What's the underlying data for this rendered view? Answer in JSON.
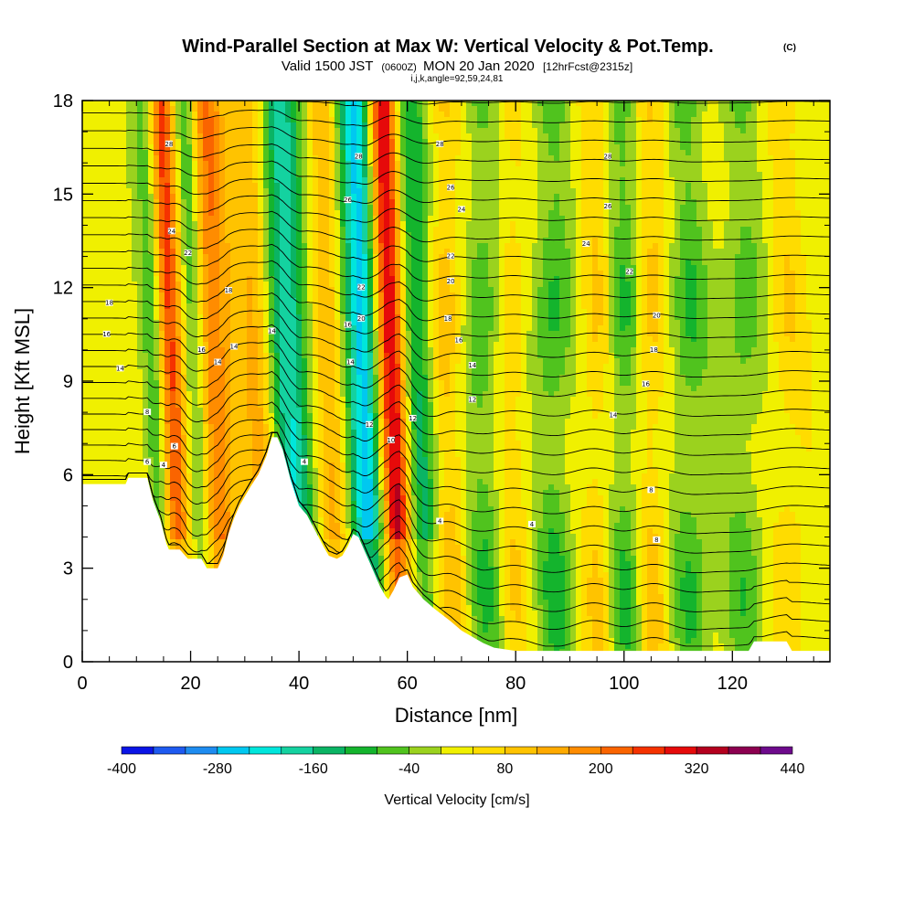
{
  "header": {
    "title": "Wind-Parallel Section at Max W: Vertical Velocity & Pot.Temp.",
    "title_mark": "(C)",
    "subtitle_a": "Valid 1500 JST",
    "subtitle_b": "(0600Z)",
    "subtitle_c": "MON 20 Jan 2020",
    "subtitle_d": "[12hrFcst@2315z]",
    "section_info": "i,j,k,angle=92,59,24,81"
  },
  "chart_data": {
    "type": "heatmap",
    "title": "Wind-Parallel Section at Max W: Vertical Velocity & Pot.Temp.",
    "xlabel": "Distance [nm]",
    "ylabel": "Height [Kft MSL]",
    "xlim": [
      0,
      138
    ],
    "ylim": [
      0,
      18
    ],
    "x_ticks": [
      0,
      20,
      40,
      60,
      80,
      100,
      120
    ],
    "y_ticks": [
      0,
      3,
      6,
      9,
      12,
      15,
      18
    ],
    "colorbar": {
      "title": "Vertical Velocity [cm/s]",
      "tick_values": [
        -400,
        -280,
        -160,
        -40,
        80,
        200,
        320,
        440
      ],
      "tick_labels": [
        "-400",
        "-280",
        "-160",
        "-40",
        "80",
        "200",
        "320",
        "440"
      ],
      "levels": [
        -400,
        -360,
        -320,
        -280,
        -240,
        -200,
        -160,
        -120,
        -80,
        -40,
        0,
        40,
        80,
        120,
        160,
        200,
        240,
        280,
        320,
        360,
        400,
        440
      ],
      "colors": [
        "#0a14e6",
        "#1e5af0",
        "#1e8cf0",
        "#00c8f0",
        "#00e6dc",
        "#14d2a0",
        "#0ab464",
        "#14b42d",
        "#50c31e",
        "#9bd21e",
        "#f0f000",
        "#ffdc00",
        "#ffc300",
        "#ffaa00",
        "#ff8c00",
        "#fa6400",
        "#f53200",
        "#e60a0a",
        "#b4001e",
        "#8c0050",
        "#6e0a8c"
      ]
    },
    "vertical_velocity_bands": [
      {
        "x": 16,
        "w": 280,
        "width": 1.8
      },
      {
        "x": 14,
        "w": -170,
        "width": 1.6
      },
      {
        "x": 21,
        "w": -170,
        "width": 1.6
      },
      {
        "x": 24,
        "w": 200,
        "width": 2.6
      },
      {
        "x": 33,
        "w": 140,
        "width": 2.5
      },
      {
        "x": 38,
        "w": -230,
        "width": 3.0
      },
      {
        "x": 46,
        "w": 120,
        "width": 2.5
      },
      {
        "x": 52,
        "w": -300,
        "width": 2.6
      },
      {
        "x": 57,
        "w": 360,
        "width": 2.0
      },
      {
        "x": 62,
        "w": -160,
        "width": 2.2
      },
      {
        "x": 67,
        "w": 110,
        "width": 2.2
      },
      {
        "x": 74,
        "w": -110,
        "width": 2.5
      },
      {
        "x": 79,
        "w": 70,
        "width": 2.0
      },
      {
        "x": 87,
        "w": -120,
        "width": 2.5
      },
      {
        "x": 95,
        "w": 80,
        "width": 2.0
      },
      {
        "x": 100,
        "w": -120,
        "width": 2.2
      },
      {
        "x": 105,
        "w": 90,
        "width": 2.0
      },
      {
        "x": 112,
        "w": -110,
        "width": 2.5
      },
      {
        "x": 122,
        "w": -90,
        "width": 3.0
      },
      {
        "x": 130,
        "w": 60,
        "width": 2.5
      }
    ],
    "terrain_kft": [
      [
        0,
        5.7
      ],
      [
        5,
        5.7
      ],
      [
        8,
        5.7
      ],
      [
        8.5,
        5.9
      ],
      [
        12,
        5.9
      ],
      [
        13,
        5.2
      ],
      [
        14.5,
        4.5
      ],
      [
        15.5,
        3.8
      ],
      [
        16,
        3.6
      ],
      [
        18,
        3.6
      ],
      [
        19.5,
        3.3
      ],
      [
        22,
        3.3
      ],
      [
        23,
        3.0
      ],
      [
        25,
        3.0
      ],
      [
        26,
        3.4
      ],
      [
        27,
        4.1
      ],
      [
        28,
        4.6
      ],
      [
        29,
        5.0
      ],
      [
        30,
        5.3
      ],
      [
        31,
        5.6
      ],
      [
        32.5,
        6.0
      ],
      [
        34,
        6.6
      ],
      [
        35,
        7.2
      ],
      [
        36,
        7.2
      ],
      [
        37,
        6.8
      ],
      [
        38.5,
        5.8
      ],
      [
        40,
        5.0
      ],
      [
        41.5,
        4.7
      ],
      [
        43,
        4.2
      ],
      [
        44.5,
        3.7
      ],
      [
        45.5,
        3.4
      ],
      [
        47,
        3.3
      ],
      [
        48,
        3.4
      ],
      [
        49,
        3.7
      ],
      [
        50,
        4.1
      ],
      [
        51,
        4.0
      ],
      [
        52,
        3.6
      ],
      [
        53,
        3.2
      ],
      [
        54,
        2.8
      ],
      [
        55,
        2.4
      ],
      [
        56,
        2.1
      ],
      [
        56.5,
        2.0
      ],
      [
        57.5,
        2.3
      ],
      [
        58.5,
        2.7
      ],
      [
        60,
        2.8
      ],
      [
        61,
        2.4
      ],
      [
        63,
        2.0
      ],
      [
        65,
        1.7
      ],
      [
        68,
        1.3
      ],
      [
        70,
        1.0
      ],
      [
        72,
        0.8
      ],
      [
        74,
        0.6
      ],
      [
        76,
        0.45
      ],
      [
        80,
        0.35
      ],
      [
        90,
        0.35
      ],
      [
        100,
        0.35
      ],
      [
        110,
        0.35
      ],
      [
        123,
        0.35
      ],
      [
        124,
        0.65
      ],
      [
        130,
        0.65
      ],
      [
        131,
        0.35
      ],
      [
        138,
        0.35
      ]
    ],
    "theta_contour_labels": [
      {
        "x": 12,
        "y": 8.0,
        "text": "8"
      },
      {
        "x": 12,
        "y": 6.4,
        "text": "6"
      },
      {
        "x": 15,
        "y": 6.3,
        "text": "4"
      },
      {
        "x": 17,
        "y": 6.9,
        "text": "6"
      },
      {
        "x": 16,
        "y": 16.6,
        "text": "28"
      },
      {
        "x": 16.5,
        "y": 13.8,
        "text": "24"
      },
      {
        "x": 19.5,
        "y": 13.1,
        "text": "22"
      },
      {
        "x": 22,
        "y": 10.0,
        "text": "16"
      },
      {
        "x": 25,
        "y": 9.6,
        "text": "14"
      },
      {
        "x": 28,
        "y": 10.1,
        "text": "14"
      },
      {
        "x": 27,
        "y": 11.9,
        "text": "18"
      },
      {
        "x": 35,
        "y": 10.6,
        "text": "14"
      },
      {
        "x": 41,
        "y": 6.4,
        "text": "4"
      },
      {
        "x": 5,
        "y": 11.5,
        "text": "18"
      },
      {
        "x": 4.5,
        "y": 10.5,
        "text": "16"
      },
      {
        "x": 7,
        "y": 9.4,
        "text": "14"
      },
      {
        "x": 51,
        "y": 16.2,
        "text": "28"
      },
      {
        "x": 49,
        "y": 14.8,
        "text": "26"
      },
      {
        "x": 51.5,
        "y": 12.0,
        "text": "22"
      },
      {
        "x": 51.5,
        "y": 11.0,
        "text": "20"
      },
      {
        "x": 49,
        "y": 10.8,
        "text": "16"
      },
      {
        "x": 49.5,
        "y": 9.6,
        "text": "14"
      },
      {
        "x": 53,
        "y": 7.6,
        "text": "12"
      },
      {
        "x": 57,
        "y": 7.1,
        "text": "10"
      },
      {
        "x": 61,
        "y": 7.8,
        "text": "12"
      },
      {
        "x": 66,
        "y": 16.6,
        "text": "28"
      },
      {
        "x": 68,
        "y": 15.2,
        "text": "26"
      },
      {
        "x": 70,
        "y": 14.5,
        "text": "24"
      },
      {
        "x": 68,
        "y": 13.0,
        "text": "22"
      },
      {
        "x": 68,
        "y": 12.2,
        "text": "20"
      },
      {
        "x": 67.5,
        "y": 11.0,
        "text": "18"
      },
      {
        "x": 69.5,
        "y": 10.3,
        "text": "16"
      },
      {
        "x": 72,
        "y": 9.5,
        "text": "14"
      },
      {
        "x": 72,
        "y": 8.4,
        "text": "12"
      },
      {
        "x": 66,
        "y": 4.5,
        "text": "4"
      },
      {
        "x": 83,
        "y": 4.4,
        "text": "4"
      },
      {
        "x": 97,
        "y": 16.2,
        "text": "28"
      },
      {
        "x": 97,
        "y": 14.6,
        "text": "26"
      },
      {
        "x": 93,
        "y": 13.4,
        "text": "24"
      },
      {
        "x": 101,
        "y": 12.5,
        "text": "22"
      },
      {
        "x": 106,
        "y": 11.1,
        "text": "20"
      },
      {
        "x": 105.5,
        "y": 10.0,
        "text": "18"
      },
      {
        "x": 104,
        "y": 8.9,
        "text": "16"
      },
      {
        "x": 98,
        "y": 7.9,
        "text": "14"
      },
      {
        "x": 105,
        "y": 5.5,
        "text": "8"
      },
      {
        "x": 106,
        "y": 3.9,
        "text": "8"
      }
    ]
  }
}
